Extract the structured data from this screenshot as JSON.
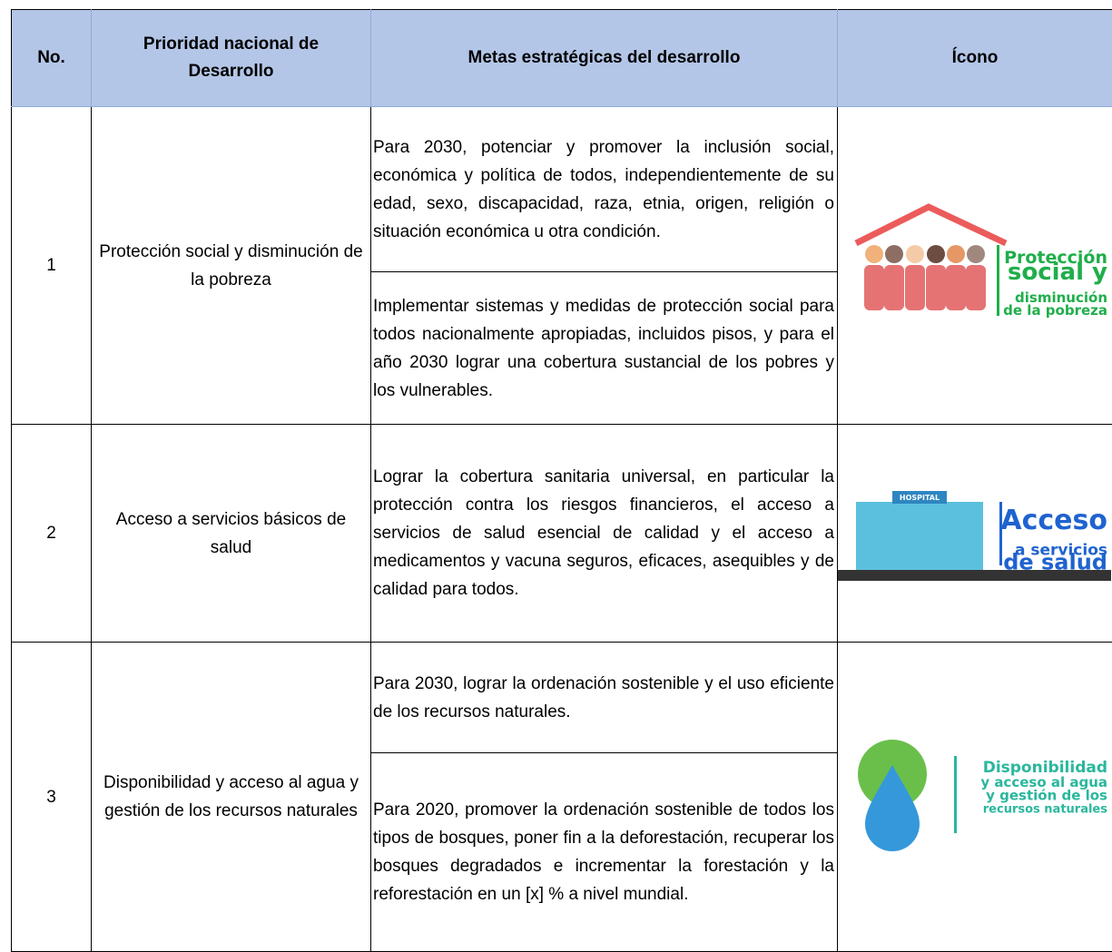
{
  "table": {
    "headers": [
      "No.",
      "Prioridad nacional de Desarrollo",
      "Metas estratégicas del desarrollo",
      "Ícono"
    ],
    "rows": [
      {
        "no": "1",
        "priority": "Protección social y disminución de la pobreza",
        "goals": [
          "Para 2030, potenciar y promover la inclusión social, económica y política de todos, independientemente de su edad, sexo, discapacidad, raza, etnia, origen, religión o situación económica u otra condición.",
          "Implementar sistemas y medidas de protección social para todos nacionalmente apropiadas, incluidos pisos, y para el año 2030 lograr una cobertura sustancial de los pobres y los vulnerables."
        ],
        "icon": {
          "lines": [
            "Protección",
            "social y",
            "disminución",
            "de la pobreza"
          ]
        }
      },
      {
        "no": "2",
        "priority": "Acceso a servicios básicos de salud",
        "goals": [
          "Lograr la cobertura sanitaria universal, en particular la protección contra los riesgos financieros, el acceso a servicios de salud esencial de calidad y el acceso a medicamentos y vacuna seguros, eficaces, asequibles y de calidad para todos."
        ],
        "icon": {
          "sign": "HOSPITAL",
          "lines": [
            "Acceso",
            "a servicios",
            "de salud"
          ]
        }
      },
      {
        "no": "3",
        "priority": "Disponibilidad y acceso al agua y gestión de los recursos naturales",
        "goals": [
          "Para 2030, lograr la ordenación sostenible y el uso eficiente de los recursos naturales.",
          "Para 2020, promover la ordenación sostenible de todos los tipos de bosques, poner fin a la deforestación, recuperar los bosques degradados e incrementar la forestación y la reforestación en un [x] % a nivel mundial."
        ],
        "icon": {
          "lines": [
            "Disponibilidad",
            "y acceso al agua",
            "y gestión de los",
            "recursos naturales"
          ]
        }
      }
    ]
  }
}
